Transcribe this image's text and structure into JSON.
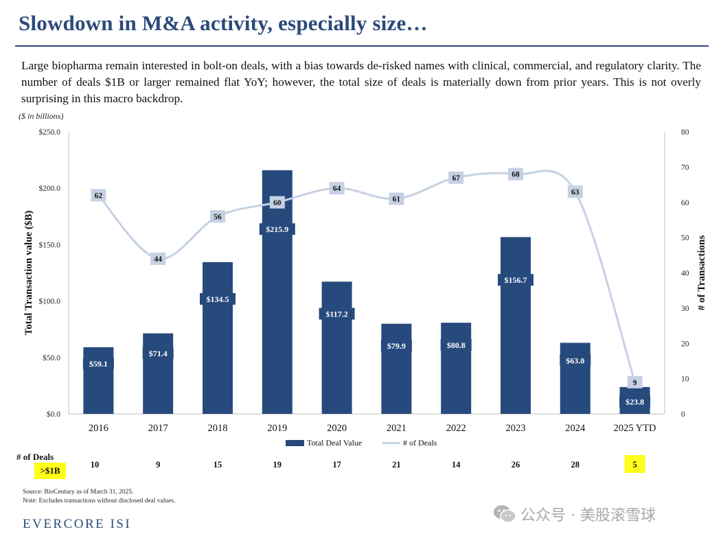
{
  "header": {
    "title": "Slowdown in M&A activity, especially size…",
    "subtitle": "Large biopharma remain interested in bolt-on deals, with a bias towards de-risked names with clinical, commercial, and regulatory clarity. The number of deals $1B or larger remained flat YoY; however, the total size of deals is materially down from prior years. This is not overly surprising in this macro backdrop.",
    "units_note": "($ in billions)"
  },
  "chart_data": {
    "type": "bar",
    "categories": [
      "2016",
      "2017",
      "2018",
      "2019",
      "2020",
      "2021",
      "2022",
      "2023",
      "2024",
      "2025 YTD"
    ],
    "series": [
      {
        "name": "Total Deal Value",
        "kind": "bar",
        "axis": "left",
        "values": [
          59.1,
          71.4,
          134.5,
          215.9,
          117.2,
          79.9,
          80.8,
          156.7,
          63.0,
          23.8
        ],
        "labels": [
          "$59.1",
          "$71.4",
          "$134.5",
          "$215.9",
          "$117.2",
          "$79.9",
          "$80.8",
          "$156.7",
          "$63.0",
          "$23.8"
        ],
        "color": "#274a7d"
      },
      {
        "name": "# of Deals",
        "kind": "line",
        "axis": "right",
        "values": [
          62,
          44,
          56,
          60,
          64,
          61,
          67,
          68,
          63,
          9
        ],
        "labels": [
          "62",
          "44",
          "56",
          "60",
          "64",
          "61",
          "67",
          "68",
          "63",
          "9"
        ],
        "color": "#c5d1e3"
      }
    ],
    "ylabel": "Total  Transaction value ($B)",
    "ylabel_right": "# of Transactions",
    "ylim": [
      0,
      250
    ],
    "ylim_right": [
      0,
      80
    ],
    "yticks": [
      "$0.0",
      "$50.0",
      "$100.0",
      "$150.0",
      "$200.0",
      "$250.0"
    ],
    "yticks_right": [
      "0",
      "10",
      "20",
      "30",
      "40",
      "50",
      "60",
      "70",
      "80"
    ],
    "grid": false,
    "legend_position": "bottom"
  },
  "deals_row": {
    "label": "# of Deals",
    "sublabel": ">$1B",
    "values": [
      "10",
      "9",
      "15",
      "19",
      "17",
      "21",
      "14",
      "26",
      "28",
      "5"
    ],
    "highlight_color": "#ffff1a",
    "highlight_last": true
  },
  "footer": {
    "source": "Source: BioCentury as of March 31, 2025.",
    "note": "Note: Excludes transactions without disclosed deal values.",
    "brand": "EVERCORE ISI",
    "watermark": "公众号 · 美股滚雪球"
  }
}
